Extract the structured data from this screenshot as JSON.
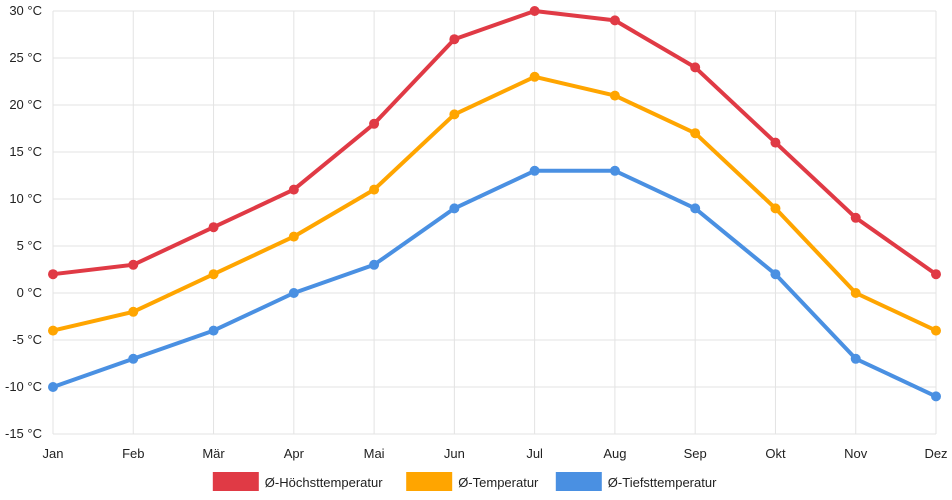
{
  "chart_data": {
    "type": "line",
    "title": "",
    "xlabel": "",
    "ylabel": "",
    "categories": [
      "Jan",
      "Feb",
      "Mär",
      "Apr",
      "Mai",
      "Jun",
      "Jul",
      "Aug",
      "Sep",
      "Okt",
      "Nov",
      "Dez"
    ],
    "ylim": [
      -15,
      30
    ],
    "yticks": [
      30,
      25,
      20,
      15,
      10,
      5,
      0,
      -5,
      -10,
      -15
    ],
    "ytick_labels": [
      "30 °C",
      "25 °C",
      "20 °C",
      "15 °C",
      "10 °C",
      "5 °C",
      "0 °C",
      "-5 °C",
      "-10 °C",
      "-15 °C"
    ],
    "grid": true,
    "legend_position": "bottom",
    "series": [
      {
        "name": "Ø-Höchsttemperatur",
        "color": "#e03a45",
        "values": [
          2,
          3,
          7,
          11,
          18,
          27,
          30,
          29,
          24,
          16,
          8,
          2
        ]
      },
      {
        "name": "Ø-Temperatur",
        "color": "#ffa500",
        "values": [
          -4,
          -2,
          2,
          6,
          11,
          19,
          23,
          21,
          17,
          9,
          0,
          -4
        ]
      },
      {
        "name": "Ø-Tiefsttemperatur",
        "color": "#4a90e2",
        "values": [
          -10,
          -7,
          -4,
          0,
          3,
          9,
          13,
          13,
          9,
          2,
          -7,
          -11
        ]
      }
    ]
  }
}
